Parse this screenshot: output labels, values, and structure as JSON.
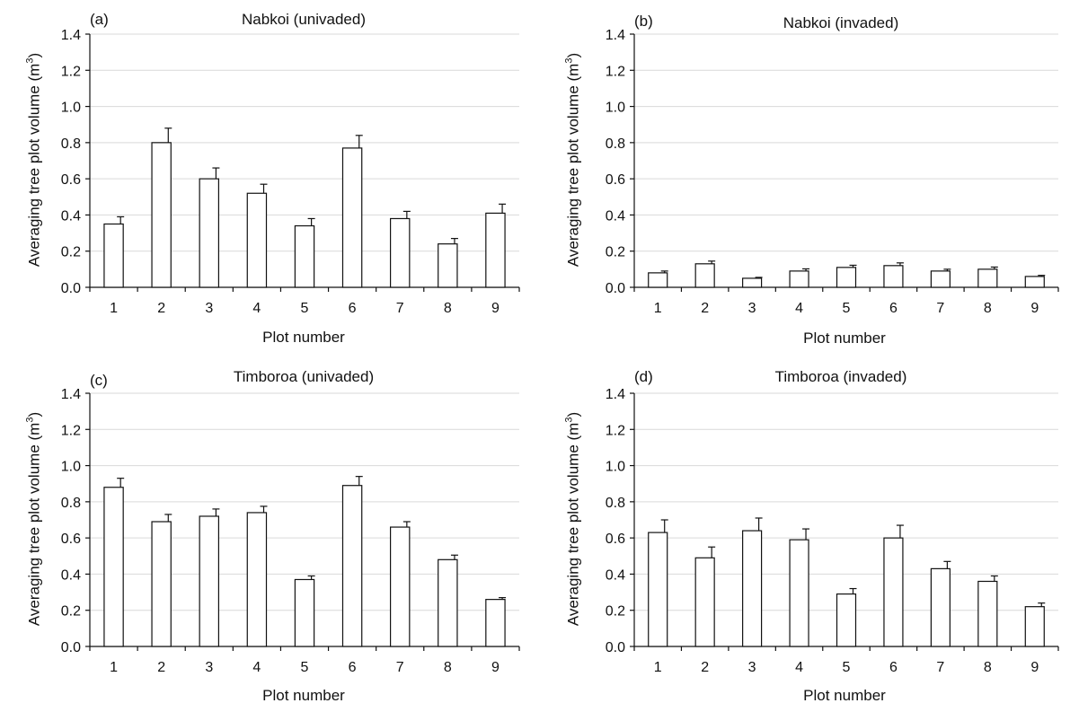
{
  "chart_data": [
    {
      "type": "bar",
      "panel_label": "(a)",
      "title": "Nabkoi (univaded)",
      "xlabel": "Plot number",
      "ylabel": "Averaging tree plot volume (m",
      "ylabel_sup": "3",
      "ylabel_end": ")",
      "categories": [
        "1",
        "2",
        "3",
        "4",
        "5",
        "6",
        "7",
        "8",
        "9"
      ],
      "values": [
        0.35,
        0.8,
        0.6,
        0.52,
        0.34,
        0.77,
        0.38,
        0.24,
        0.41
      ],
      "errors": [
        0.04,
        0.08,
        0.06,
        0.05,
        0.04,
        0.07,
        0.04,
        0.03,
        0.05
      ],
      "ylim": [
        0,
        1.4
      ],
      "yticks": [
        "0.0",
        "0.2",
        "0.4",
        "0.6",
        "0.8",
        "1.0",
        "1.2",
        "1.4"
      ],
      "grid": true
    },
    {
      "type": "bar",
      "panel_label": "(b)",
      "title": "Nabkoi (invaded)",
      "xlabel": "Plot number",
      "ylabel": "Averaging tree plot volume (m",
      "ylabel_sup": "3",
      "ylabel_end": ")",
      "categories": [
        "1",
        "2",
        "3",
        "4",
        "5",
        "6",
        "7",
        "8",
        "9"
      ],
      "values": [
        0.08,
        0.13,
        0.05,
        0.09,
        0.11,
        0.12,
        0.09,
        0.1,
        0.06
      ],
      "errors": [
        0.01,
        0.015,
        0.005,
        0.012,
        0.012,
        0.015,
        0.01,
        0.012,
        0.006
      ],
      "ylim": [
        0,
        1.4
      ],
      "yticks": [
        "0.0",
        "0.2",
        "0.4",
        "0.6",
        "0.8",
        "1.0",
        "1.2",
        "1.4"
      ],
      "grid": true
    },
    {
      "type": "bar",
      "panel_label": "(c)",
      "title": "Timboroa (univaded)",
      "xlabel": "Plot number",
      "ylabel": "Averaging tree plot volume (m",
      "ylabel_sup": "3",
      "ylabel_end": ")",
      "categories": [
        "1",
        "2",
        "3",
        "4",
        "5",
        "6",
        "7",
        "8",
        "9"
      ],
      "values": [
        0.88,
        0.69,
        0.72,
        0.74,
        0.37,
        0.89,
        0.66,
        0.48,
        0.26
      ],
      "errors": [
        0.05,
        0.04,
        0.04,
        0.035,
        0.02,
        0.05,
        0.03,
        0.025,
        0.01
      ],
      "ylim": [
        0,
        1.4
      ],
      "yticks": [
        "0.0",
        "0.2",
        "0.4",
        "0.6",
        "0.8",
        "1.0",
        "1.2",
        "1.4"
      ],
      "grid": true
    },
    {
      "type": "bar",
      "panel_label": "(d)",
      "title": "Timboroa (invaded)",
      "xlabel": "Plot number",
      "ylabel": "Averaging tree plot volume (m",
      "ylabel_sup": "3",
      "ylabel_end": ")",
      "categories": [
        "1",
        "2",
        "3",
        "4",
        "5",
        "6",
        "7",
        "8",
        "9"
      ],
      "values": [
        0.63,
        0.49,
        0.64,
        0.59,
        0.29,
        0.6,
        0.43,
        0.36,
        0.22
      ],
      "errors": [
        0.07,
        0.06,
        0.07,
        0.06,
        0.03,
        0.07,
        0.04,
        0.03,
        0.02
      ],
      "ylim": [
        0,
        1.4
      ],
      "yticks": [
        "0.0",
        "0.2",
        "0.4",
        "0.6",
        "0.8",
        "1.0",
        "1.2",
        "1.4"
      ],
      "grid": true
    }
  ]
}
